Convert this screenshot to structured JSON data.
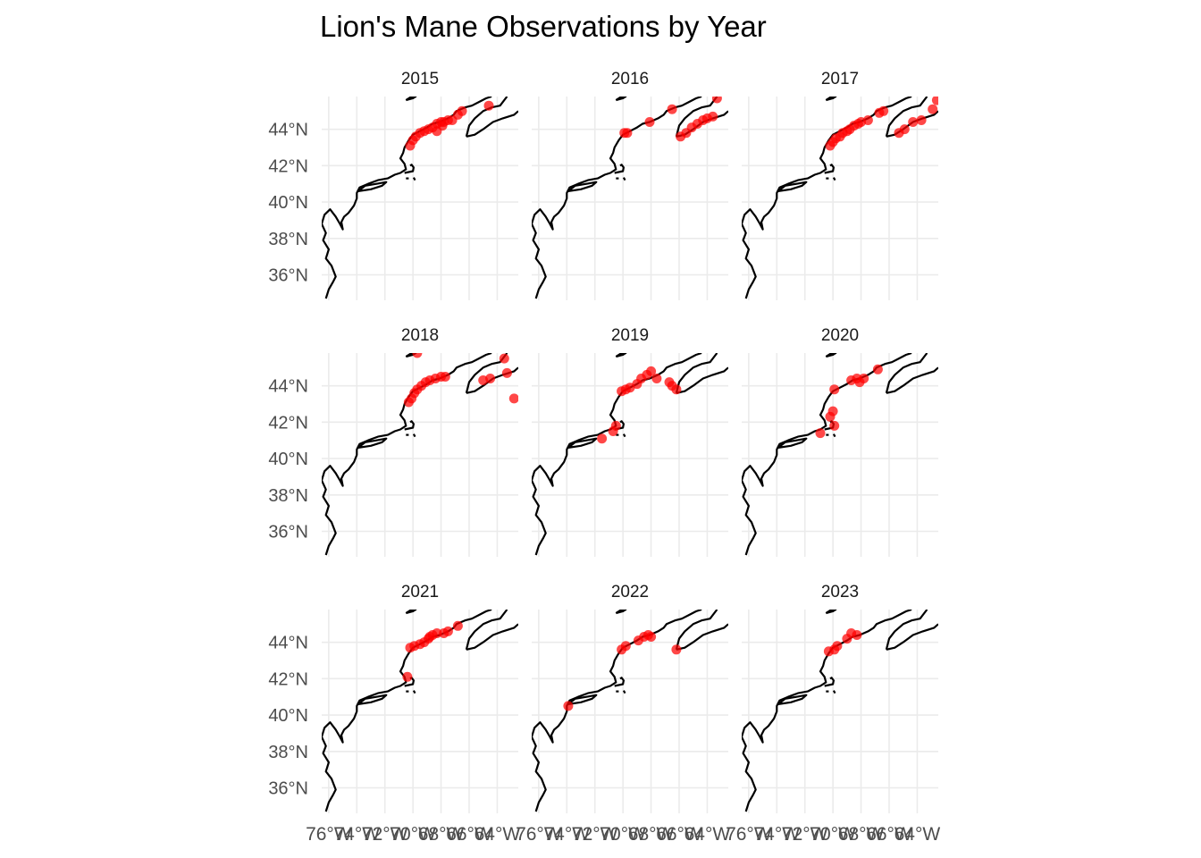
{
  "title": "Lion's Mane Observations by Year",
  "colors": {
    "point": "#ff0000",
    "coast": "#000000",
    "grid": "#ebebeb"
  },
  "chart_data": {
    "type": "scatter",
    "kind": "faceted map",
    "title": "Lion's Mane Observations by Year",
    "facets": [
      "2015",
      "2016",
      "2017",
      "2018",
      "2019",
      "2020",
      "2021",
      "2022",
      "2023"
    ],
    "xlim": [
      -76.5,
      -62.5
    ],
    "ylim": [
      34.6,
      45.8
    ],
    "x_breaks": [
      -76,
      -74,
      -72,
      -70,
      -68,
      -66,
      -64
    ],
    "x_tick_labels": [
      "76°W",
      "74°W",
      "72°W",
      "70°W",
      "68°W",
      "66°W",
      "64°W"
    ],
    "y_breaks": [
      36,
      38,
      40,
      42,
      44
    ],
    "y_tick_labels": [
      "36°N",
      "38°N",
      "40°N",
      "42°N",
      "44°N"
    ],
    "grid": true,
    "points_by_year": {
      "2015": [
        [
          -70.2,
          43.1
        ],
        [
          -70.0,
          43.4
        ],
        [
          -69.8,
          43.6
        ],
        [
          -69.5,
          43.8
        ],
        [
          -69.2,
          43.9
        ],
        [
          -68.9,
          44.0
        ],
        [
          -68.6,
          44.1
        ],
        [
          -68.3,
          44.3
        ],
        [
          -68.0,
          44.4
        ],
        [
          -67.8,
          44.4
        ],
        [
          -67.5,
          44.5
        ],
        [
          -67.2,
          44.5
        ],
        [
          -68.3,
          43.9
        ],
        [
          -66.8,
          44.8
        ],
        [
          -66.5,
          45.0
        ],
        [
          -64.6,
          45.3
        ],
        [
          -67.9,
          44.2
        ]
      ],
      "2016": [
        [
          -69.9,
          43.8
        ],
        [
          -69.7,
          43.8
        ],
        [
          -68.1,
          44.4
        ],
        [
          -66.5,
          45.1
        ],
        [
          -65.9,
          43.6
        ],
        [
          -65.5,
          43.8
        ],
        [
          -65.1,
          44.1
        ],
        [
          -64.7,
          44.3
        ],
        [
          -64.3,
          44.5
        ],
        [
          -64.0,
          44.6
        ],
        [
          -63.6,
          44.7
        ],
        [
          -63.3,
          45.7
        ]
      ],
      "2017": [
        [
          -70.2,
          43.1
        ],
        [
          -70.0,
          43.3
        ],
        [
          -69.8,
          43.5
        ],
        [
          -69.5,
          43.6
        ],
        [
          -69.3,
          43.8
        ],
        [
          -69.0,
          43.9
        ],
        [
          -68.8,
          44.0
        ],
        [
          -68.5,
          44.2
        ],
        [
          -68.2,
          44.3
        ],
        [
          -68.0,
          44.4
        ],
        [
          -67.5,
          44.5
        ],
        [
          -66.7,
          44.9
        ],
        [
          -66.4,
          45.0
        ],
        [
          -65.3,
          43.8
        ],
        [
          -64.9,
          44.0
        ],
        [
          -64.3,
          44.4
        ],
        [
          -63.7,
          44.5
        ],
        [
          -62.9,
          45.1
        ],
        [
          -62.6,
          45.6
        ]
      ],
      "2018": [
        [
          -70.3,
          43.1
        ],
        [
          -70.1,
          43.3
        ],
        [
          -69.9,
          43.6
        ],
        [
          -69.7,
          43.8
        ],
        [
          -69.4,
          44.0
        ],
        [
          -69.1,
          44.2
        ],
        [
          -68.8,
          44.3
        ],
        [
          -68.4,
          44.4
        ],
        [
          -68.0,
          44.5
        ],
        [
          -69.7,
          45.8
        ],
        [
          -67.7,
          44.5
        ],
        [
          -65.0,
          44.3
        ],
        [
          -64.5,
          44.4
        ],
        [
          -63.3,
          44.7
        ],
        [
          -63.5,
          45.5
        ],
        [
          -62.8,
          43.3
        ]
      ],
      "2019": [
        [
          -70.1,
          43.7
        ],
        [
          -69.8,
          43.8
        ],
        [
          -69.5,
          43.9
        ],
        [
          -69.0,
          44.1
        ],
        [
          -68.7,
          44.4
        ],
        [
          -68.3,
          44.6
        ],
        [
          -68.0,
          44.8
        ],
        [
          -67.6,
          44.4
        ],
        [
          -66.7,
          44.2
        ],
        [
          -66.5,
          44.0
        ],
        [
          -66.2,
          43.8
        ],
        [
          -71.5,
          41.1
        ],
        [
          -70.7,
          41.5
        ],
        [
          -70.5,
          41.8
        ]
      ],
      "2020": [
        [
          -70.2,
          42.3
        ],
        [
          -70.0,
          42.6
        ],
        [
          -69.9,
          43.8
        ],
        [
          -68.7,
          44.3
        ],
        [
          -68.3,
          44.4
        ],
        [
          -68.1,
          44.2
        ],
        [
          -67.8,
          44.4
        ],
        [
          -66.8,
          44.9
        ],
        [
          -70.9,
          41.4
        ],
        [
          -69.9,
          41.8
        ]
      ],
      "2021": [
        [
          -70.2,
          43.7
        ],
        [
          -69.9,
          43.8
        ],
        [
          -69.5,
          43.9
        ],
        [
          -69.2,
          44.0
        ],
        [
          -68.9,
          44.2
        ],
        [
          -68.6,
          44.4
        ],
        [
          -68.3,
          44.5
        ],
        [
          -67.8,
          44.5
        ],
        [
          -67.5,
          44.6
        ],
        [
          -66.8,
          44.9
        ],
        [
          -70.4,
          42.1
        ],
        [
          -68.8,
          44.3
        ]
      ],
      "2022": [
        [
          -73.9,
          40.5
        ],
        [
          -70.1,
          43.6
        ],
        [
          -69.8,
          43.8
        ],
        [
          -68.9,
          44.1
        ],
        [
          -68.5,
          44.3
        ],
        [
          -68.2,
          44.4
        ],
        [
          -68.0,
          44.3
        ],
        [
          -66.2,
          43.6
        ]
      ],
      "2023": [
        [
          -70.3,
          43.5
        ],
        [
          -69.9,
          43.6
        ],
        [
          -69.7,
          43.8
        ],
        [
          -69.0,
          44.2
        ],
        [
          -68.7,
          44.5
        ],
        [
          -68.3,
          44.4
        ]
      ]
    }
  }
}
